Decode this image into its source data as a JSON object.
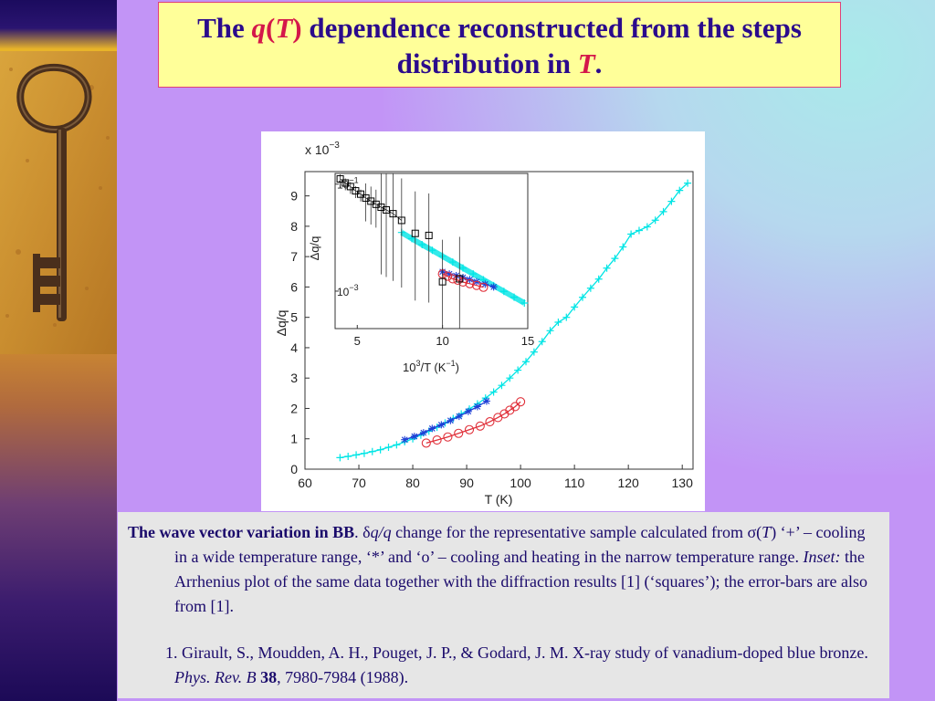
{
  "slide": {
    "title": {
      "part1": "The ",
      "q": "q",
      "paren_open": "(",
      "T": "T",
      "paren_close": ")",
      "part2": " dependence reconstructed from the steps",
      "line2": "distribution in ",
      "T2": "T",
      "period": "."
    },
    "caption": {
      "bold_lead": "The wave vector variation in BB",
      "sep": ". ",
      "delta": "δ",
      "q1": "q",
      "slash": "/",
      "q2": "q",
      "text1": " change for the representative sample calculated from σ(",
      "T": "T",
      "text2": ") ‘+’ – cooling in a wide temperature range, ‘*’ and ‘o’ – cooling and heating in the narrow temperature range. ",
      "inset_word": "Inset:",
      "text3": " the Arrhenius plot of the same data together with the diffraction results [1] (‘squares’); the error-bars are also from [1]."
    },
    "reference": {
      "text1": "1. Girault, S., Moudden, A. H., Pouget, J. P., & Godard, J. M. X-ray study of vanadium-doped blue bronze. ",
      "journal": "Phys. Rev. B",
      "space": " ",
      "volume": "38",
      "text2": ", 7980-7984 (1988)."
    },
    "colors": {
      "title_text": "#2b0b8c",
      "title_highlight": "#d4174a",
      "title_box": "#ffff99",
      "series_plus": "#00e5e5",
      "series_star": "#1f3fd6",
      "series_circle": "#e0303a",
      "series_square": "#000000"
    },
    "icons": [
      "antique-key-photo"
    ]
  },
  "chart_data": [
    {
      "type": "scatter",
      "title": "",
      "xlabel": "T (K)",
      "ylabel": "Δq/q",
      "y_multiplier": "x 10",
      "y_multiplier_exp": "−3",
      "xlim": [
        60,
        132
      ],
      "ylim": [
        0,
        9.8
      ],
      "xticks": [
        "60",
        "70",
        "80",
        "90",
        "100",
        "110",
        "120",
        "130"
      ],
      "yticks": [
        "0",
        "1",
        "2",
        "3",
        "4",
        "5",
        "6",
        "7",
        "8",
        "9"
      ],
      "grid": false,
      "series": [
        {
          "marker": "plus",
          "x": [
            66.5,
            68,
            69.5,
            71,
            72.5,
            74,
            75.5,
            77,
            78.5,
            80,
            81.5,
            83,
            84.5,
            86,
            87.5,
            89,
            90.5,
            92,
            93.5,
            95,
            96.5,
            98,
            99.5,
            101,
            102.5,
            104,
            105.5,
            107,
            108.5,
            110,
            111.5,
            113,
            114.5,
            116,
            117.5,
            119,
            120.5,
            122,
            123.5,
            125,
            126.5,
            128,
            129.5,
            131
          ],
          "y": [
            0.38,
            0.42,
            0.47,
            0.52,
            0.58,
            0.64,
            0.72,
            0.8,
            0.9,
            1.0,
            1.12,
            1.25,
            1.38,
            1.52,
            1.67,
            1.82,
            1.98,
            2.15,
            2.34,
            2.54,
            2.76,
            3.0,
            3.26,
            3.54,
            3.86,
            4.2,
            4.56,
            4.84,
            5.0,
            5.34,
            5.66,
            5.96,
            6.26,
            6.62,
            6.94,
            7.32,
            7.74,
            7.86,
            7.98,
            8.2,
            8.48,
            8.82,
            9.18,
            9.42
          ]
        },
        {
          "marker": "star",
          "x": [
            78.5,
            80.3,
            82,
            83.6,
            85.3,
            87,
            88.6,
            90.3,
            92,
            93.7
          ],
          "y": [
            0.97,
            1.08,
            1.2,
            1.34,
            1.46,
            1.6,
            1.74,
            1.9,
            2.06,
            2.24
          ]
        },
        {
          "marker": "circle",
          "x": [
            82.5,
            84.5,
            86.5,
            88.5,
            90.5,
            92.5,
            94.3,
            95.8,
            97,
            98,
            99,
            100
          ],
          "y": [
            0.86,
            0.96,
            1.06,
            1.18,
            1.3,
            1.42,
            1.56,
            1.7,
            1.82,
            1.94,
            2.06,
            2.22
          ]
        }
      ]
    },
    {
      "type": "scatter",
      "title": "Inset",
      "xlabel": "10^3/T (K^-1)",
      "ylabel": "Δq/q",
      "xlim": [
        3.7,
        15
      ],
      "ylim_log10": [
        -3.7,
        -0.8
      ],
      "xticks": [
        "5",
        "10",
        "15"
      ],
      "yticks": [
        "10",
        "10"
      ],
      "ytick_exponents": [
        "−1",
        "−3"
      ],
      "y_scale": "log",
      "series": [
        {
          "marker": "plus",
          "x": [
            7.6,
            8.2,
            8.8,
            9.4,
            10.0,
            10.6,
            11.2,
            11.8,
            12.4,
            13.0,
            13.6,
            14.2,
            14.8
          ],
          "y": [
            0.0125,
            0.0096,
            0.0074,
            0.0058,
            0.0045,
            0.0035,
            0.0027,
            0.0021,
            0.00163,
            0.00127,
            0.00099,
            0.00077,
            0.0006
          ]
        },
        {
          "marker": "star",
          "x": [
            10.0,
            10.4,
            10.8,
            11.2,
            11.6,
            12.0,
            12.5,
            13.0
          ],
          "y": [
            0.0023,
            0.0021,
            0.00195,
            0.0018,
            0.00165,
            0.0015,
            0.00135,
            0.0012
          ]
        },
        {
          "marker": "circle",
          "x": [
            10.0,
            10.3,
            10.6,
            10.9,
            11.2,
            11.6,
            12.0,
            12.4
          ],
          "y": [
            0.0021,
            0.0019,
            0.0017,
            0.0016,
            0.00148,
            0.00138,
            0.00128,
            0.00118
          ]
        },
        {
          "marker": "square",
          "x": [
            4.0,
            4.3,
            4.6,
            4.9,
            5.2,
            5.5,
            5.8,
            6.1,
            6.4,
            6.7,
            7.1,
            7.6,
            8.4,
            9.2,
            10.0,
            11.0
          ],
          "y": [
            0.125,
            0.105,
            0.09,
            0.075,
            0.065,
            0.055,
            0.048,
            0.042,
            0.037,
            0.033,
            0.028,
            0.021,
            0.012,
            0.011,
            0.0015,
            0.0017
          ]
        }
      ]
    }
  ]
}
